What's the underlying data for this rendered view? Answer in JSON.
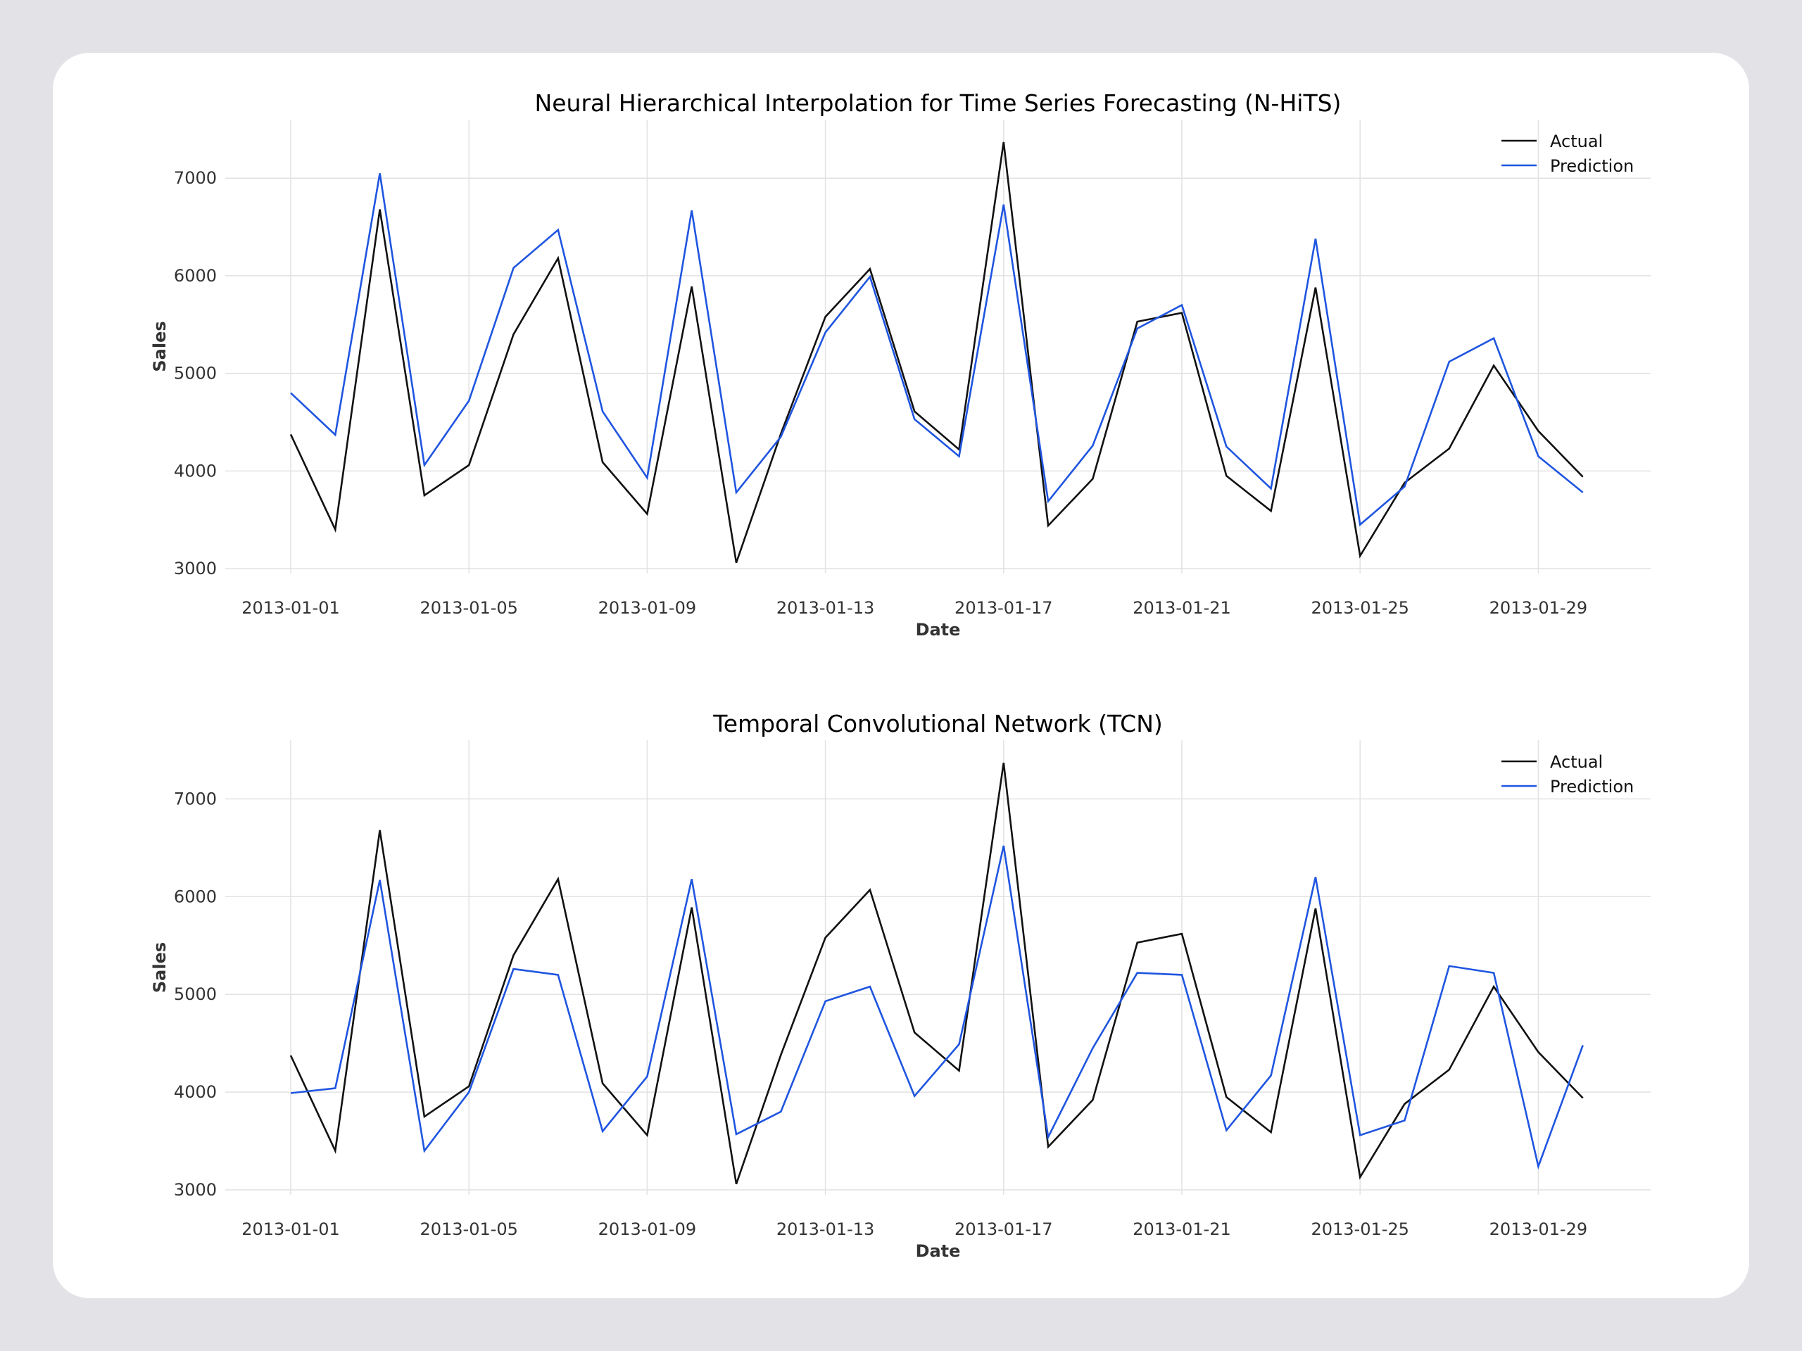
{
  "chart_data": [
    {
      "type": "line",
      "title": "Neural Hierarchical Interpolation for Time Series Forecasting (N-HiTS)",
      "xlabel": "Date",
      "ylabel": "Sales",
      "ylim": [
        2950,
        7600
      ],
      "xlim": [
        0,
        30.5
      ],
      "grid": true,
      "legend_position": "top-right",
      "yticks": [
        3000,
        4000,
        5000,
        6000,
        7000
      ],
      "xticks": [
        "2013-01-01",
        "2013-01-05",
        "2013-01-09",
        "2013-01-13",
        "2013-01-17",
        "2013-01-21",
        "2013-01-25",
        "2013-01-29"
      ],
      "xtick_days": [
        0,
        4,
        8,
        12,
        16,
        20,
        24,
        28
      ],
      "series": [
        {
          "name": "Actual",
          "color": "#111111",
          "x": [
            0,
            1,
            2,
            3,
            4,
            5,
            6,
            7,
            8,
            9,
            10,
            11,
            12,
            13,
            14,
            15,
            16,
            17,
            18,
            19,
            20,
            21,
            22,
            23,
            24,
            25,
            26,
            27,
            28,
            29
          ],
          "values": [
            4375,
            3400,
            6680,
            3750,
            4060,
            5400,
            6180,
            4090,
            3560,
            5890,
            3060,
            4380,
            5580,
            6070,
            4610,
            4220,
            7370,
            3440,
            3920,
            5530,
            5620,
            3950,
            3590,
            5880,
            3130,
            3880,
            4230,
            5080,
            4410,
            3940
          ]
        },
        {
          "name": "Prediction",
          "color": "#1f55e0",
          "x": [
            0,
            1,
            2,
            3,
            4,
            5,
            6,
            7,
            8,
            9,
            10,
            11,
            12,
            13,
            14,
            15,
            16,
            17,
            18,
            19,
            20,
            21,
            22,
            23,
            24,
            25,
            26,
            27,
            28,
            29
          ],
          "values": [
            4800,
            4370,
            7050,
            4060,
            4720,
            6080,
            6470,
            4610,
            3930,
            6670,
            3780,
            4350,
            5420,
            5990,
            4530,
            4150,
            6730,
            3690,
            4260,
            5460,
            5700,
            4250,
            3820,
            6380,
            3450,
            3840,
            5120,
            5360,
            4150,
            3780
          ]
        }
      ]
    },
    {
      "type": "line",
      "title": "Temporal Convolutional Network (TCN)",
      "xlabel": "Date",
      "ylabel": "Sales",
      "ylim": [
        2950,
        7600
      ],
      "xlim": [
        0,
        30.5
      ],
      "grid": true,
      "legend_position": "top-right",
      "yticks": [
        3000,
        4000,
        5000,
        6000,
        7000
      ],
      "xticks": [
        "2013-01-01",
        "2013-01-05",
        "2013-01-09",
        "2013-01-13",
        "2013-01-17",
        "2013-01-21",
        "2013-01-25",
        "2013-01-29"
      ],
      "xtick_days": [
        0,
        4,
        8,
        12,
        16,
        20,
        24,
        28
      ],
      "series": [
        {
          "name": "Actual",
          "color": "#111111",
          "x": [
            0,
            1,
            2,
            3,
            4,
            5,
            6,
            7,
            8,
            9,
            10,
            11,
            12,
            13,
            14,
            15,
            16,
            17,
            18,
            19,
            20,
            21,
            22,
            23,
            24,
            25,
            26,
            27,
            28,
            29
          ],
          "values": [
            4375,
            3400,
            6680,
            3750,
            4060,
            5400,
            6180,
            4090,
            3560,
            5890,
            3060,
            4380,
            5580,
            6070,
            4610,
            4220,
            7370,
            3440,
            3920,
            5530,
            5620,
            3950,
            3590,
            5880,
            3130,
            3880,
            4230,
            5080,
            4410,
            3940
          ]
        },
        {
          "name": "Prediction",
          "color": "#1f55e0",
          "x": [
            0,
            1,
            2,
            3,
            4,
            5,
            6,
            7,
            8,
            9,
            10,
            11,
            12,
            13,
            14,
            15,
            16,
            17,
            18,
            19,
            20,
            21,
            22,
            23,
            24,
            25,
            26,
            27,
            28,
            29
          ],
          "values": [
            3990,
            4040,
            6170,
            3400,
            4000,
            5260,
            5200,
            3600,
            4160,
            6180,
            3570,
            3800,
            4930,
            5080,
            3960,
            4490,
            6520,
            3540,
            4450,
            5220,
            5200,
            3610,
            4170,
            6200,
            3560,
            3710,
            5290,
            5220,
            3240,
            4480
          ]
        }
      ]
    }
  ]
}
